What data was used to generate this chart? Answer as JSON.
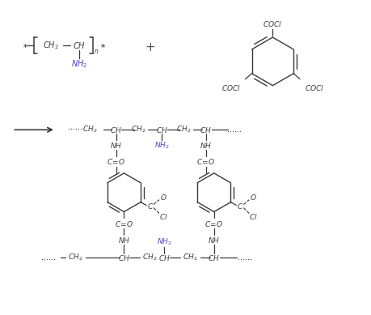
{
  "bg_color": "#ffffff",
  "text_color": "#3a3a3a",
  "nh2_color": "#4444bb",
  "figsize": [
    4.6,
    3.89
  ],
  "dpi": 100
}
